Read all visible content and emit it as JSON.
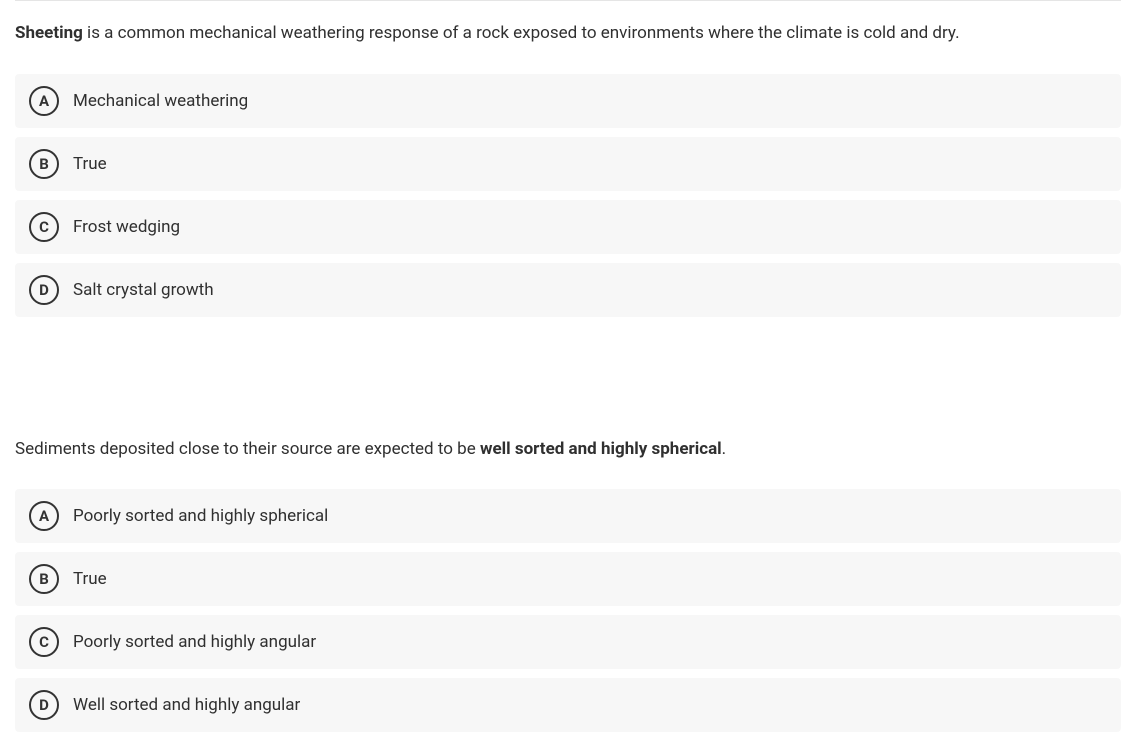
{
  "colors": {
    "option_bg": "#f7f7f7",
    "text": "#303030",
    "circle_border": "#333333",
    "divider": "#e5e5e5"
  },
  "questions": [
    {
      "prompt_prefix_bold": "Sheeting",
      "prompt_middle": " is a common mechanical weathering response of a rock exposed to environments where the climate is cold and dry.",
      "prompt_suffix_bold": "",
      "prompt_tail": "",
      "options": [
        {
          "letter": "A",
          "text": "Mechanical weathering"
        },
        {
          "letter": "B",
          "text": "True"
        },
        {
          "letter": "C",
          "text": "Frost wedging"
        },
        {
          "letter": "D",
          "text": "Salt crystal growth"
        }
      ]
    },
    {
      "prompt_prefix_bold": "",
      "prompt_middle": "Sediments deposited close to their source are expected to be ",
      "prompt_suffix_bold": "well sorted and highly spherical",
      "prompt_tail": ".",
      "options": [
        {
          "letter": "A",
          "text": "Poorly sorted and highly spherical"
        },
        {
          "letter": "B",
          "text": "True"
        },
        {
          "letter": "C",
          "text": "Poorly sorted and highly angular"
        },
        {
          "letter": "D",
          "text": "Well sorted and highly angular"
        }
      ]
    }
  ]
}
